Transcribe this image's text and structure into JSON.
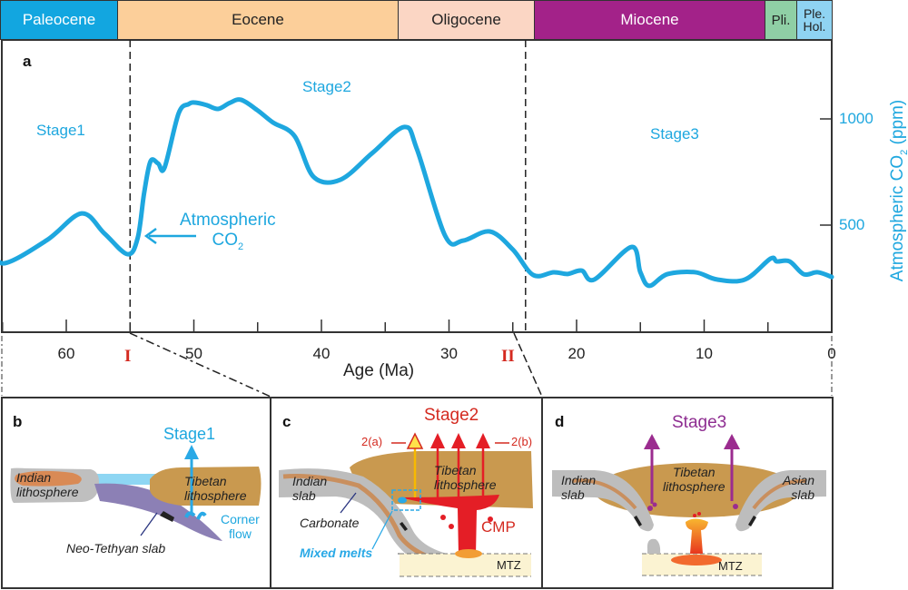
{
  "epochs": [
    {
      "name": "Paleocene",
      "color": "#12a6e0",
      "text_color": "#ffffff"
    },
    {
      "name": "Eocene",
      "color": "#fccf9a",
      "text_color": "#222222"
    },
    {
      "name": "Oligocene",
      "color": "#fbd6c4",
      "text_color": "#222222"
    },
    {
      "name": "Miocene",
      "color": "#a32289",
      "text_color": "#ffffff"
    },
    {
      "name": "Pli.",
      "color": "#8fcfa5",
      "text_color": "#222222"
    },
    {
      "name": "Ple.\nHol.",
      "color": "#8fd3f2",
      "text_color": "#222222"
    }
  ],
  "panel_a": {
    "letter": "a",
    "stage1": "Stage1",
    "stage2": "Stage2",
    "stage3": "Stage3",
    "curve_label_line1": "Atmospheric",
    "curve_label_line2": "CO",
    "curve_label_sub": "2",
    "boundary_I": "I",
    "boundary_II": "II"
  },
  "chart_data": {
    "type": "line",
    "title": "",
    "xlabel": "Age (Ma)",
    "ylabel": "Atmospheric CO2 (ppm)",
    "x_reversed": true,
    "xlim": [
      66,
      0
    ],
    "ylim": [
      0,
      1450
    ],
    "x_ticks": [
      60,
      50,
      40,
      30,
      20,
      10,
      0
    ],
    "y_ticks": [
      500,
      1000
    ],
    "grid": false,
    "line_color": "#1ea7df",
    "boundaries": [
      {
        "label": "I",
        "age": 55
      },
      {
        "label": "II",
        "age": 24
      }
    ],
    "series": [
      {
        "name": "Atmospheric CO2",
        "x": [
          65.9,
          64.9,
          61.5,
          58.8,
          57,
          55.2,
          54.4,
          53.9,
          53.4,
          52.8,
          52.3,
          51.2,
          50.4,
          49.9,
          49,
          48.1,
          47.2,
          46.3,
          45,
          43.8,
          42.1,
          40.6,
          38.5,
          36,
          33.5,
          32.5,
          30.3,
          28.9,
          26.8,
          25,
          23.4,
          21.8,
          20.7,
          19.6,
          18.6,
          15.7,
          15,
          14.3,
          12.9,
          10.7,
          9,
          6.8,
          4.8,
          4.3,
          3.3,
          2.2,
          1.1,
          0
        ],
        "y": [
          405,
          320,
          430,
          555,
          460,
          363,
          440,
          650,
          800,
          790,
          770,
          1025,
          1070,
          1077,
          1065,
          1047,
          1075,
          1090,
          1040,
          983,
          919,
          726,
          714,
          840,
          962,
          855,
          449,
          427,
          470,
          385,
          265,
          278,
          270,
          286,
          244,
          397,
          278,
          214,
          269,
          278,
          244,
          244,
          342,
          329,
          329,
          269,
          278,
          256
        ]
      }
    ]
  },
  "panel_b": {
    "letter": "b",
    "stage": "Stage1",
    "indian": "Indian\nlithosphere",
    "tibetan": "Tibetan\nlithosphere",
    "corner_flow": "Corner\nflow",
    "slab": "Neo-Tethyan slab"
  },
  "panel_c": {
    "letter": "c",
    "stage": "Stage2",
    "label_2a": "2(a)",
    "label_2b": "2(b)",
    "indian": "Indian\nslab",
    "tibetan": "Tibetan\nlithosphere",
    "carbonate": "Carbonate",
    "mixed_melts": "Mixed melts",
    "cmp": "CMP",
    "mtz": "MTZ"
  },
  "panel_d": {
    "letter": "d",
    "stage": "Stage3",
    "indian": "Indian\nslab",
    "asian": "Asian\nslab",
    "tibetan": "Tibetan\nlithosphere",
    "mtz": "MTZ"
  }
}
